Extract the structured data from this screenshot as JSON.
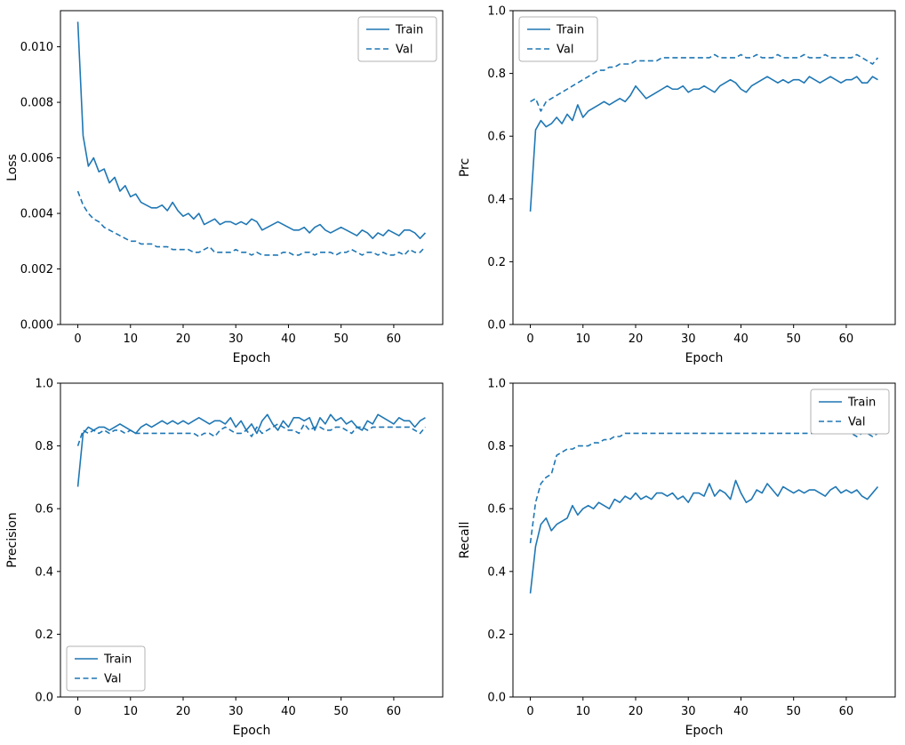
{
  "figure": {
    "background": "#ffffff",
    "line_color": "#1f77b4",
    "axes_color": "#000000",
    "legend_border_color": "#b3b3b3"
  },
  "chart_data": [
    {
      "type": "line",
      "id": "loss",
      "title": "",
      "xlabel": "Epoch",
      "ylabel": "Loss",
      "xlim": [
        -3.3,
        69.3
      ],
      "ylim": [
        0.0,
        0.0113
      ],
      "xticks": [
        0,
        10,
        20,
        30,
        40,
        50,
        60
      ],
      "xtick_labels": [
        "0",
        "10",
        "20",
        "30",
        "40",
        "50",
        "60"
      ],
      "yticks": [
        0.0,
        0.002,
        0.004,
        0.006,
        0.008,
        0.01
      ],
      "ytick_labels": [
        "0.000",
        "0.002",
        "0.004",
        "0.006",
        "0.008",
        "0.010"
      ],
      "grid": false,
      "legend_position": "upper-right",
      "x_start": 0,
      "x_step": 1,
      "series": [
        {
          "name": "Train",
          "style": "solid",
          "values": [
            0.0109,
            0.0068,
            0.0057,
            0.006,
            0.0055,
            0.0056,
            0.0051,
            0.0053,
            0.0048,
            0.005,
            0.0046,
            0.0047,
            0.0044,
            0.0043,
            0.0042,
            0.0042,
            0.0043,
            0.0041,
            0.0044,
            0.0041,
            0.0039,
            0.004,
            0.0038,
            0.004,
            0.0036,
            0.0037,
            0.0038,
            0.0036,
            0.0037,
            0.0037,
            0.0036,
            0.0037,
            0.0036,
            0.0038,
            0.0037,
            0.0034,
            0.0035,
            0.0036,
            0.0037,
            0.0036,
            0.0035,
            0.0034,
            0.0034,
            0.0035,
            0.0033,
            0.0035,
            0.0036,
            0.0034,
            0.0033,
            0.0034,
            0.0035,
            0.0034,
            0.0033,
            0.0032,
            0.0034,
            0.0033,
            0.0031,
            0.0033,
            0.0032,
            0.0034,
            0.0033,
            0.0032,
            0.0034,
            0.0034,
            0.0033,
            0.0031,
            0.0033
          ]
        },
        {
          "name": "Val",
          "style": "dashed",
          "values": [
            0.0048,
            0.0043,
            0.004,
            0.0038,
            0.0037,
            0.0035,
            0.0034,
            0.0033,
            0.0032,
            0.0031,
            0.003,
            0.003,
            0.0029,
            0.0029,
            0.0029,
            0.0028,
            0.0028,
            0.0028,
            0.0027,
            0.0027,
            0.0027,
            0.0027,
            0.0026,
            0.0026,
            0.0027,
            0.0028,
            0.0026,
            0.0026,
            0.0026,
            0.0026,
            0.0027,
            0.0026,
            0.0026,
            0.0025,
            0.0026,
            0.0025,
            0.0025,
            0.0025,
            0.0025,
            0.0026,
            0.0026,
            0.0025,
            0.0025,
            0.0026,
            0.0026,
            0.0025,
            0.0026,
            0.0026,
            0.0026,
            0.0025,
            0.0026,
            0.0026,
            0.0027,
            0.0026,
            0.0025,
            0.0026,
            0.0026,
            0.0025,
            0.0026,
            0.0025,
            0.0025,
            0.0026,
            0.0025,
            0.0027,
            0.0026,
            0.0026,
            0.0028
          ]
        }
      ]
    },
    {
      "type": "line",
      "id": "prc",
      "title": "",
      "xlabel": "Epoch",
      "ylabel": "Prc",
      "xlim": [
        -3.3,
        69.3
      ],
      "ylim": [
        0.0,
        1.0
      ],
      "xticks": [
        0,
        10,
        20,
        30,
        40,
        50,
        60
      ],
      "xtick_labels": [
        "0",
        "10",
        "20",
        "30",
        "40",
        "50",
        "60"
      ],
      "yticks": [
        0.0,
        0.2,
        0.4,
        0.6,
        0.8,
        1.0
      ],
      "ytick_labels": [
        "0.0",
        "0.2",
        "0.4",
        "0.6",
        "0.8",
        "1.0"
      ],
      "grid": false,
      "legend_position": "upper-left",
      "x_start": 0,
      "x_step": 1,
      "series": [
        {
          "name": "Train",
          "style": "solid",
          "values": [
            0.36,
            0.62,
            0.65,
            0.63,
            0.64,
            0.66,
            0.64,
            0.67,
            0.65,
            0.7,
            0.66,
            0.68,
            0.69,
            0.7,
            0.71,
            0.7,
            0.71,
            0.72,
            0.71,
            0.73,
            0.76,
            0.74,
            0.72,
            0.73,
            0.74,
            0.75,
            0.76,
            0.75,
            0.75,
            0.76,
            0.74,
            0.75,
            0.75,
            0.76,
            0.75,
            0.74,
            0.76,
            0.77,
            0.78,
            0.77,
            0.75,
            0.74,
            0.76,
            0.77,
            0.78,
            0.79,
            0.78,
            0.77,
            0.78,
            0.77,
            0.78,
            0.78,
            0.77,
            0.79,
            0.78,
            0.77,
            0.78,
            0.79,
            0.78,
            0.77,
            0.78,
            0.78,
            0.79,
            0.77,
            0.77,
            0.79,
            0.78
          ]
        },
        {
          "name": "Val",
          "style": "dashed",
          "values": [
            0.71,
            0.72,
            0.68,
            0.71,
            0.72,
            0.73,
            0.74,
            0.75,
            0.76,
            0.77,
            0.78,
            0.79,
            0.8,
            0.81,
            0.81,
            0.82,
            0.82,
            0.83,
            0.83,
            0.83,
            0.84,
            0.84,
            0.84,
            0.84,
            0.84,
            0.85,
            0.85,
            0.85,
            0.85,
            0.85,
            0.85,
            0.85,
            0.85,
            0.85,
            0.85,
            0.86,
            0.85,
            0.85,
            0.85,
            0.85,
            0.86,
            0.85,
            0.85,
            0.86,
            0.85,
            0.85,
            0.85,
            0.86,
            0.85,
            0.85,
            0.85,
            0.85,
            0.86,
            0.85,
            0.85,
            0.85,
            0.86,
            0.85,
            0.85,
            0.85,
            0.85,
            0.85,
            0.86,
            0.85,
            0.84,
            0.83,
            0.85
          ]
        }
      ]
    },
    {
      "type": "line",
      "id": "precision",
      "title": "",
      "xlabel": "Epoch",
      "ylabel": "Precision",
      "xlim": [
        -3.3,
        69.3
      ],
      "ylim": [
        0.0,
        1.0
      ],
      "xticks": [
        0,
        10,
        20,
        30,
        40,
        50,
        60
      ],
      "xtick_labels": [
        "0",
        "10",
        "20",
        "30",
        "40",
        "50",
        "60"
      ],
      "yticks": [
        0.0,
        0.2,
        0.4,
        0.6,
        0.8,
        1.0
      ],
      "ytick_labels": [
        "0.0",
        "0.2",
        "0.4",
        "0.6",
        "0.8",
        "1.0"
      ],
      "grid": false,
      "legend_position": "lower-left",
      "x_start": 0,
      "x_step": 1,
      "series": [
        {
          "name": "Train",
          "style": "solid",
          "values": [
            0.67,
            0.84,
            0.86,
            0.85,
            0.86,
            0.86,
            0.85,
            0.86,
            0.87,
            0.86,
            0.85,
            0.84,
            0.86,
            0.87,
            0.86,
            0.87,
            0.88,
            0.87,
            0.88,
            0.87,
            0.88,
            0.87,
            0.88,
            0.89,
            0.88,
            0.87,
            0.88,
            0.88,
            0.87,
            0.89,
            0.86,
            0.88,
            0.85,
            0.87,
            0.84,
            0.88,
            0.9,
            0.87,
            0.85,
            0.88,
            0.86,
            0.89,
            0.89,
            0.88,
            0.89,
            0.85,
            0.89,
            0.87,
            0.9,
            0.88,
            0.89,
            0.87,
            0.88,
            0.86,
            0.85,
            0.88,
            0.87,
            0.9,
            0.89,
            0.88,
            0.87,
            0.89,
            0.88,
            0.88,
            0.86,
            0.88,
            0.89
          ]
        },
        {
          "name": "Val",
          "style": "dashed",
          "values": [
            0.8,
            0.85,
            0.84,
            0.85,
            0.84,
            0.85,
            0.84,
            0.85,
            0.85,
            0.84,
            0.85,
            0.84,
            0.84,
            0.84,
            0.84,
            0.84,
            0.84,
            0.84,
            0.84,
            0.84,
            0.84,
            0.84,
            0.84,
            0.83,
            0.84,
            0.84,
            0.83,
            0.85,
            0.86,
            0.85,
            0.84,
            0.84,
            0.85,
            0.83,
            0.86,
            0.84,
            0.85,
            0.86,
            0.87,
            0.86,
            0.85,
            0.85,
            0.84,
            0.87,
            0.85,
            0.86,
            0.86,
            0.85,
            0.85,
            0.86,
            0.86,
            0.85,
            0.84,
            0.86,
            0.86,
            0.85,
            0.86,
            0.86,
            0.86,
            0.86,
            0.86,
            0.86,
            0.86,
            0.86,
            0.85,
            0.84,
            0.86
          ]
        }
      ]
    },
    {
      "type": "line",
      "id": "recall",
      "title": "",
      "xlabel": "Epoch",
      "ylabel": "Recall",
      "xlim": [
        -3.3,
        69.3
      ],
      "ylim": [
        0.0,
        1.0
      ],
      "xticks": [
        0,
        10,
        20,
        30,
        40,
        50,
        60
      ],
      "xtick_labels": [
        "0",
        "10",
        "20",
        "30",
        "40",
        "50",
        "60"
      ],
      "yticks": [
        0.0,
        0.2,
        0.4,
        0.6,
        0.8,
        1.0
      ],
      "ytick_labels": [
        "0.0",
        "0.2",
        "0.4",
        "0.6",
        "0.8",
        "1.0"
      ],
      "grid": false,
      "legend_position": "upper-right",
      "x_start": 0,
      "x_step": 1,
      "series": [
        {
          "name": "Train",
          "style": "solid",
          "values": [
            0.33,
            0.48,
            0.55,
            0.57,
            0.53,
            0.55,
            0.56,
            0.57,
            0.61,
            0.58,
            0.6,
            0.61,
            0.6,
            0.62,
            0.61,
            0.6,
            0.63,
            0.62,
            0.64,
            0.63,
            0.65,
            0.63,
            0.64,
            0.63,
            0.65,
            0.65,
            0.64,
            0.65,
            0.63,
            0.64,
            0.62,
            0.65,
            0.65,
            0.64,
            0.68,
            0.64,
            0.66,
            0.65,
            0.63,
            0.69,
            0.65,
            0.62,
            0.63,
            0.66,
            0.65,
            0.68,
            0.66,
            0.64,
            0.67,
            0.66,
            0.65,
            0.66,
            0.65,
            0.66,
            0.66,
            0.65,
            0.64,
            0.66,
            0.67,
            0.65,
            0.66,
            0.65,
            0.66,
            0.64,
            0.63,
            0.65,
            0.67
          ]
        },
        {
          "name": "Val",
          "style": "dashed",
          "values": [
            0.49,
            0.62,
            0.68,
            0.7,
            0.71,
            0.77,
            0.78,
            0.79,
            0.79,
            0.8,
            0.8,
            0.8,
            0.81,
            0.81,
            0.82,
            0.82,
            0.83,
            0.83,
            0.84,
            0.84,
            0.84,
            0.84,
            0.84,
            0.84,
            0.84,
            0.84,
            0.84,
            0.84,
            0.84,
            0.84,
            0.84,
            0.84,
            0.84,
            0.84,
            0.84,
            0.84,
            0.84,
            0.84,
            0.84,
            0.84,
            0.84,
            0.84,
            0.84,
            0.84,
            0.84,
            0.84,
            0.84,
            0.84,
            0.84,
            0.84,
            0.84,
            0.84,
            0.84,
            0.84,
            0.84,
            0.84,
            0.84,
            0.84,
            0.84,
            0.84,
            0.84,
            0.84,
            0.83,
            0.84,
            0.84,
            0.83,
            0.84
          ]
        }
      ]
    }
  ]
}
